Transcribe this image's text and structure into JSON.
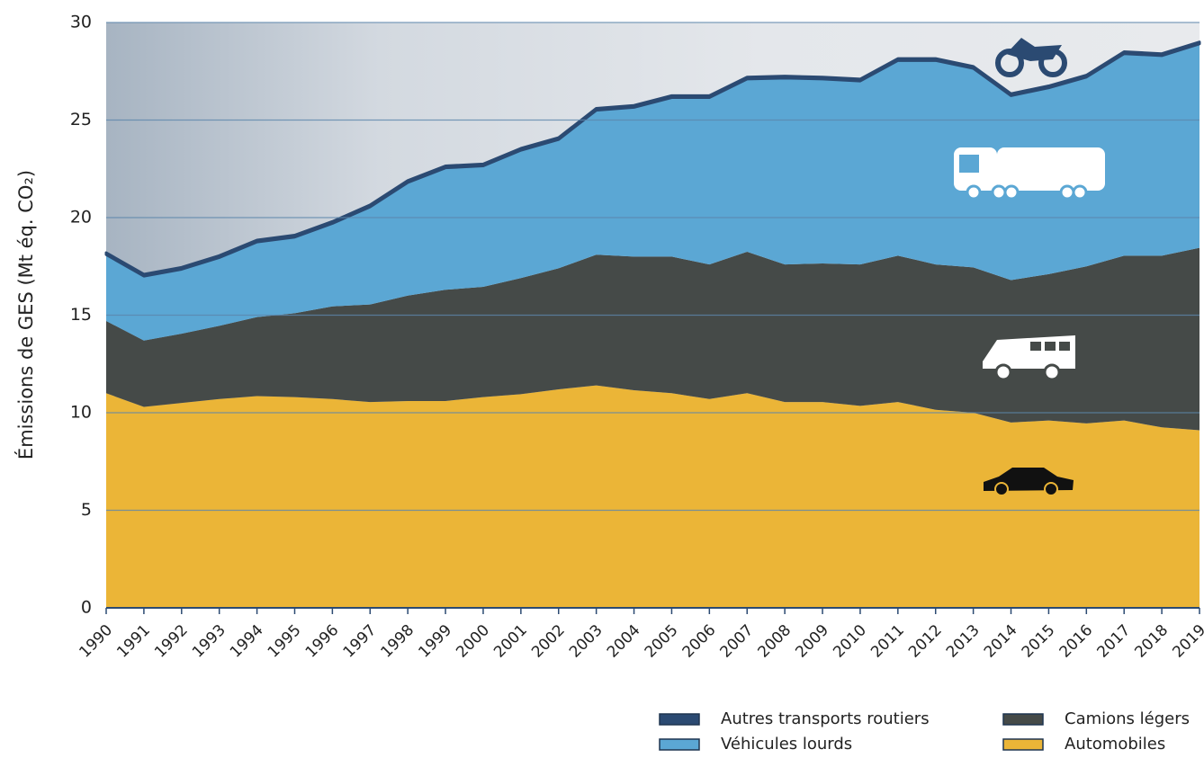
{
  "chart_data": {
    "type": "stacked-area",
    "y_label": "Émissions de GES (Mt éq. CO₂)",
    "categories": [
      "1990",
      "1991",
      "1992",
      "1993",
      "1994",
      "1995",
      "1996",
      "1997",
      "1998",
      "1999",
      "2000",
      "2001",
      "2002",
      "2003",
      "2004",
      "2005",
      "2006",
      "2007",
      "2008",
      "2009",
      "2010",
      "2011",
      "2012",
      "2013",
      "2014",
      "2015",
      "2016",
      "2017",
      "2018",
      "2019"
    ],
    "series": [
      {
        "name": "Autres transports routiers",
        "color": "#2b4a72",
        "values": [
          0.1,
          0.1,
          0.1,
          0.1,
          0.1,
          0.1,
          0.1,
          0.1,
          0.1,
          0.1,
          0.1,
          0.1,
          0.1,
          0.1,
          0.1,
          0.1,
          0.1,
          0.1,
          0.1,
          0.1,
          0.1,
          0.1,
          0.1,
          0.1,
          0.1,
          0.1,
          0.1,
          0.1,
          0.1,
          0.1
        ]
      },
      {
        "name": "Véhicules lourds",
        "color": "#5ba7d4",
        "values": [
          3.4,
          3.3,
          3.3,
          3.5,
          3.85,
          3.9,
          4.25,
          5.0,
          5.8,
          6.25,
          6.2,
          6.55,
          6.6,
          7.4,
          7.65,
          8.15,
          8.55,
          8.85,
          9.55,
          9.45,
          9.4,
          10.0,
          10.45,
          10.2,
          9.45,
          9.55,
          9.7,
          10.35,
          10.25,
          10.45
        ]
      },
      {
        "name": "Camions légers",
        "color": "#454a48",
        "values": [
          3.7,
          3.4,
          3.55,
          3.75,
          4.05,
          4.3,
          4.75,
          5.0,
          5.4,
          5.7,
          5.65,
          5.95,
          6.2,
          6.7,
          6.85,
          7.0,
          6.9,
          7.25,
          7.05,
          7.1,
          7.25,
          7.5,
          7.45,
          7.45,
          7.3,
          7.5,
          8.05,
          8.45,
          8.8,
          9.35
        ]
      },
      {
        "name": "Automobiles",
        "color": "#ebb537",
        "values": [
          11.0,
          10.3,
          10.5,
          10.7,
          10.85,
          10.8,
          10.7,
          10.55,
          10.6,
          10.6,
          10.8,
          10.95,
          11.2,
          11.4,
          11.15,
          11.0,
          10.7,
          11.0,
          10.55,
          10.55,
          10.35,
          10.55,
          10.15,
          10.0,
          9.5,
          9.6,
          9.45,
          9.6,
          9.25,
          9.1
        ]
      }
    ],
    "ylim": [
      0,
      30
    ],
    "yticks": [
      0,
      5,
      10,
      15,
      20,
      25,
      30
    ],
    "grid": true
  }
}
